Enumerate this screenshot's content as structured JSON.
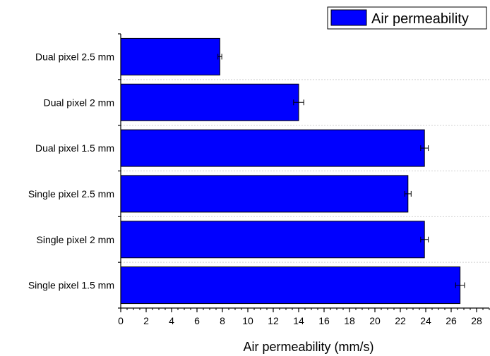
{
  "chart_data": {
    "type": "bar",
    "orientation": "horizontal",
    "categories": [
      "Dual pixel 2.5 mm",
      "Dual pixel 2 mm",
      "Dual pixel 1.5 mm",
      "Single pixel 2.5 mm",
      "Single pixel 2 mm",
      "Single pixel 1.5 mm"
    ],
    "series": [
      {
        "name": "Air permeability",
        "values": [
          7.8,
          14.0,
          23.9,
          22.6,
          23.9,
          26.7
        ],
        "errors": [
          0.15,
          0.4,
          0.3,
          0.25,
          0.3,
          0.35
        ],
        "color": "#0000FF"
      }
    ],
    "xlabel": "Air permeability (mm/s)",
    "ylabel": "",
    "xlim": [
      0,
      29
    ],
    "xticks": [
      0,
      2,
      4,
      6,
      8,
      10,
      12,
      14,
      16,
      18,
      20,
      22,
      24,
      26,
      28
    ],
    "grid": "horizontal dotted",
    "legend": "top-right"
  }
}
